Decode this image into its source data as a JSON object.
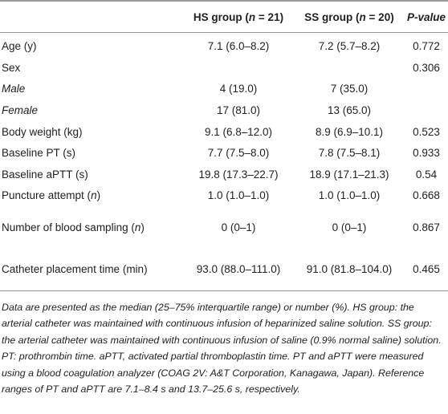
{
  "table": {
    "header": [
      [
        "HS group (",
        "n",
        " = 21)"
      ],
      [
        "SS group (",
        "n",
        " = 20)"
      ],
      [
        "P",
        "-value"
      ]
    ],
    "rows": [
      [
        "Age (y)",
        "7.1 (6.0–8.2)",
        "7.2 (5.7–8.2)",
        "0.772"
      ],
      [
        "Sex",
        null,
        null,
        "0.306"
      ],
      [
        "Male",
        "4 (19.0)",
        "7 (35.0)",
        null
      ],
      [
        "Female",
        "17 (81.0)",
        "13 (65.0)",
        null
      ],
      [
        "Body weight (kg)",
        "9.1 (6.8–12.0)",
        "8.9 (6.9–10.1)",
        "0.523"
      ],
      [
        "Baseline PT (s)",
        "7.7 (7.5–8.0)",
        "7.8 (7.5–8.1)",
        "0.933"
      ],
      [
        "Baseline aPTT (s)",
        "19.8 (17.3–22.7)",
        "18.9 (17.1–21.3)",
        "0.54"
      ],
      [
        [
          "Puncture attempt (",
          "n",
          ")"
        ],
        "1.0 (1.0–1.0)",
        "1.0 (1.0–1.0)",
        "0.668"
      ],
      [
        [
          "Number of blood sampling (",
          "n",
          ")"
        ],
        "0 (0–1)",
        "0 (0–1)",
        "0.867"
      ],
      [
        "Catheter placement time (min)",
        "93.0 (88.0–111.0)",
        "91.0 (81.8–104.0)",
        "0.465"
      ]
    ],
    "footnote": "Data are presented as the median (25–75% interquartile range) or number (%). HS group: the arterial catheter was maintained with continuous infusion of heparinized saline solution. SS group: the arterial catheter was maintained with continuous infusion of saline (0.9% normal saline) solution. PT: prothrombin time. aPTT, activated partial thromboplastin time. PT and aPTT were measured using a blood coagulation analyzer (COAG 2V: A&T Corporation, Kanagawa, Japan). Reference ranges of PT and aPTT are 7.1–8.4 s and 13.7–25.6 s, respectively."
  }
}
